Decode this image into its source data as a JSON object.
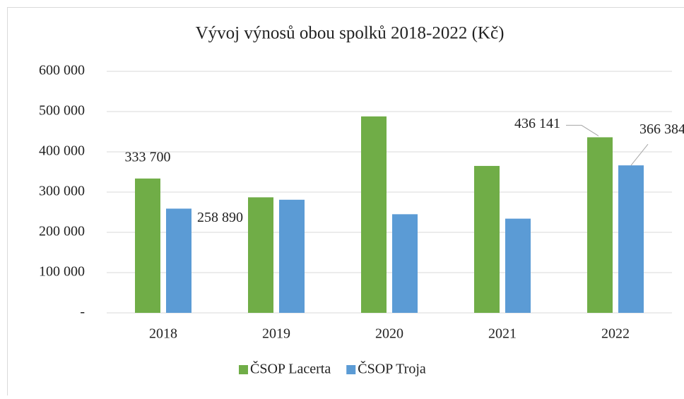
{
  "chart_data": {
    "type": "bar",
    "title": "Vývoj výnosů obou spolků 2018-2022 (Kč)",
    "categories": [
      "2018",
      "2019",
      "2020",
      "2021",
      "2022"
    ],
    "series": [
      {
        "name": "ČSOP Lacerta",
        "color": "#70ad47",
        "values": [
          333700,
          287000,
          488000,
          365000,
          436141
        ],
        "value_labels": [
          "333 700",
          null,
          null,
          null,
          "436 141"
        ]
      },
      {
        "name": "ČSOP Troja",
        "color": "#5b9bd5",
        "values": [
          258890,
          281000,
          245000,
          234000,
          366384.0
        ],
        "value_labels": [
          "258 890",
          null,
          null,
          null,
          "366 384,0"
        ]
      }
    ],
    "ylim": [
      0,
      600000
    ],
    "yticks": [
      {
        "value": 0,
        "label": "-"
      },
      {
        "value": 100000,
        "label": "100 000"
      },
      {
        "value": 200000,
        "label": "200 000"
      },
      {
        "value": 300000,
        "label": "300 000"
      },
      {
        "value": 400000,
        "label": "400 000"
      },
      {
        "value": 500000,
        "label": "500 000"
      },
      {
        "value": 600000,
        "label": "600 000"
      }
    ],
    "grid": true,
    "legend": "bottom"
  }
}
